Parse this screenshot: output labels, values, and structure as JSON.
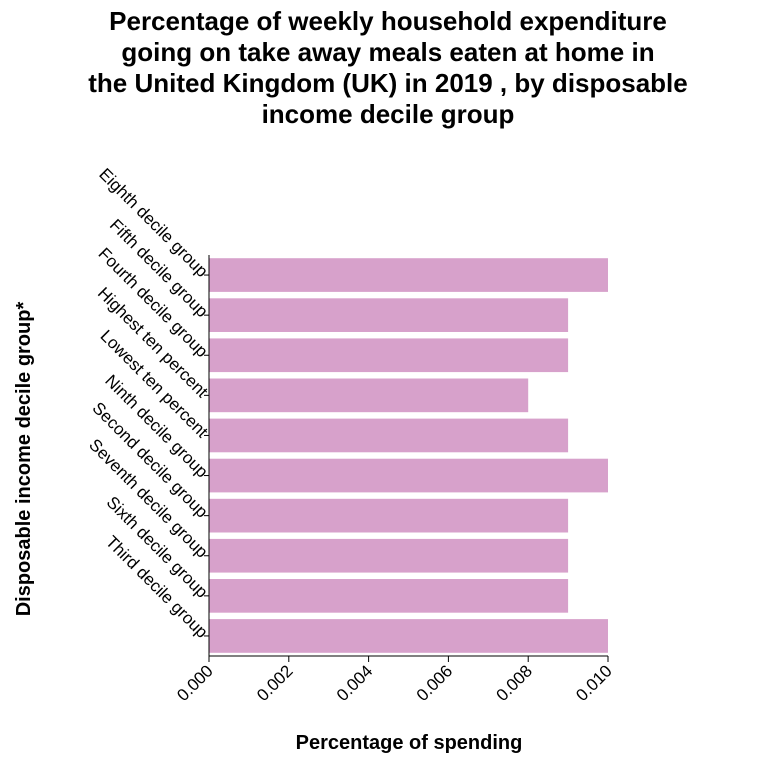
{
  "chart_data": {
    "type": "bar",
    "orientation": "horizontal",
    "title_lines": [
      "Percentage of weekly household expenditure",
      "going on take away meals eaten at home in",
      "the United Kingdom (UK) in 2019 , by disposable",
      "income decile group"
    ],
    "xlabel": "Percentage of spending",
    "ylabel": "Disposable income decile group*",
    "categories": [
      "Eighth decile group",
      "Fifth decile group",
      "Fourth decile group",
      "Highest ten percent",
      "Lowest ten percent",
      "Ninth decile group",
      "Second decile group",
      "Seventh decile group",
      "Sixth decile group",
      "Third decile group"
    ],
    "values": [
      0.01,
      0.009,
      0.009,
      0.008,
      0.009,
      0.01,
      0.009,
      0.009,
      0.009,
      0.01
    ],
    "xlim": [
      0,
      0.01
    ],
    "xticks": [
      "0.000",
      "0.002",
      "0.004",
      "0.006",
      "0.008",
      "0.010"
    ],
    "bar_color": "#d7a1cb",
    "grid": false
  }
}
